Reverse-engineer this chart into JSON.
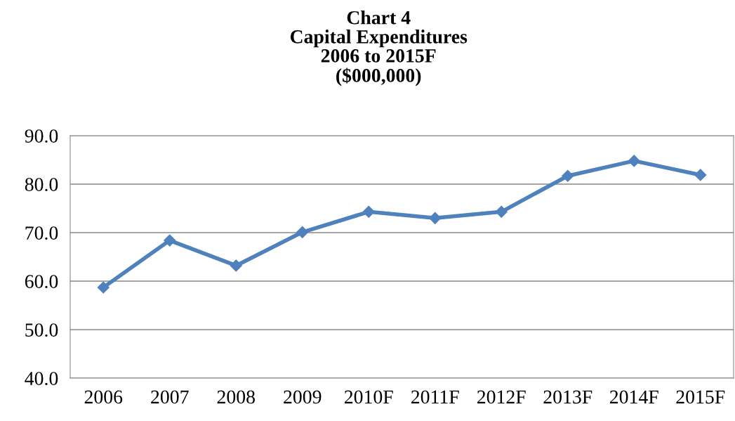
{
  "chart_data": {
    "type": "line",
    "title": "Chart 4\nCapital Expenditures\n2006 to 2015F\n($000,000)",
    "categories": [
      "2006",
      "2007",
      "2008",
      "2009",
      "2010F",
      "2011F",
      "2012F",
      "2013F",
      "2014F",
      "2015F"
    ],
    "series": [
      {
        "color": "#4f81bd",
        "values": [
          58.7,
          68.4,
          63.2,
          70.1,
          74.3,
          73.0,
          74.3,
          81.7,
          84.8,
          81.9
        ]
      }
    ],
    "ylim": [
      40,
      90
    ],
    "yticks": [
      {
        "value": 40,
        "label": "40.0"
      },
      {
        "value": 50,
        "label": "50.0"
      },
      {
        "value": 60,
        "label": "60.0"
      },
      {
        "value": 70,
        "label": "70.0"
      },
      {
        "value": 80,
        "label": "80.0"
      },
      {
        "value": 90,
        "label": "90.0"
      }
    ],
    "grid": "y",
    "marker": "diamond",
    "line_style": "solid",
    "legend": false
  }
}
